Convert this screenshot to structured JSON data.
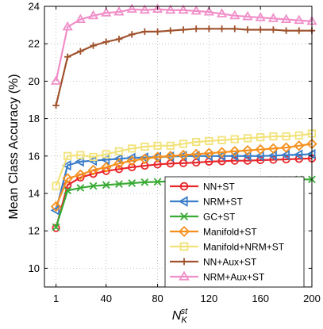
{
  "chart_data": {
    "type": "line",
    "title": "",
    "xlabel_base": "N",
    "xlabel_sub": "K",
    "xlabel_sup": "st",
    "ylabel": "Mean Class Accuracy (%)",
    "xlim": [
      -8,
      200
    ],
    "ylim": [
      9,
      24
    ],
    "x_ticks": [
      1,
      40,
      80,
      120,
      160,
      200
    ],
    "x_tick_labels": [
      "1",
      "40",
      "80",
      "120",
      "160",
      "200"
    ],
    "y_ticks": [
      10,
      12,
      14,
      16,
      18,
      20,
      22,
      24
    ],
    "y_tick_labels": [
      "10",
      "12",
      "14",
      "16",
      "18",
      "20",
      "22",
      "24"
    ],
    "grid": true,
    "legend_position": "bottom-right",
    "x": [
      1,
      10,
      20,
      30,
      40,
      50,
      60,
      70,
      80,
      90,
      100,
      110,
      120,
      130,
      140,
      150,
      160,
      170,
      180,
      190,
      200
    ],
    "series": [
      {
        "name": "NN+ST",
        "color": "#e8262a",
        "marker": "circle",
        "values": [
          12.15,
          14.45,
          14.85,
          15.05,
          15.2,
          15.3,
          15.4,
          15.48,
          15.55,
          15.6,
          15.62,
          15.65,
          15.7,
          15.72,
          15.75,
          15.75,
          15.78,
          15.8,
          15.82,
          15.85,
          15.87
        ]
      },
      {
        "name": "NRM+ST",
        "color": "#3a7dc9",
        "marker": "triangle-left",
        "values": [
          13.1,
          15.5,
          15.7,
          15.75,
          15.8,
          15.85,
          15.9,
          15.92,
          15.95,
          15.97,
          16.0,
          16.0,
          16.0,
          16.0,
          16.0,
          16.0,
          16.0,
          16.02,
          16.05,
          16.07,
          16.1
        ]
      },
      {
        "name": "GC+ST",
        "color": "#3aaa35",
        "marker": "x",
        "values": [
          12.2,
          14.15,
          14.3,
          14.4,
          14.45,
          14.5,
          14.55,
          14.6,
          14.62,
          14.65,
          14.65,
          14.67,
          14.68,
          14.68,
          14.7,
          14.7,
          14.7,
          14.72,
          14.72,
          14.75,
          14.75
        ]
      },
      {
        "name": "Manifold+ST",
        "color": "#f5901e",
        "marker": "diamond",
        "values": [
          13.3,
          14.8,
          15.0,
          15.25,
          15.4,
          15.6,
          15.75,
          15.85,
          15.95,
          16.0,
          16.05,
          16.1,
          16.15,
          16.2,
          16.25,
          16.3,
          16.35,
          16.4,
          16.45,
          16.55,
          16.65
        ]
      },
      {
        "name": "Manifold+NRM+ST",
        "color": "#f2e27a",
        "marker": "square",
        "values": [
          14.4,
          16.0,
          16.05,
          15.95,
          16.1,
          16.25,
          16.4,
          16.5,
          16.55,
          16.55,
          16.65,
          16.75,
          16.8,
          16.85,
          16.9,
          16.95,
          17.0,
          17.05,
          17.05,
          17.1,
          17.2
        ]
      },
      {
        "name": "NN+Aux+ST",
        "color": "#a0522d",
        "marker": "plus",
        "values": [
          18.7,
          21.3,
          21.6,
          21.9,
          22.1,
          22.25,
          22.5,
          22.65,
          22.65,
          22.7,
          22.75,
          22.8,
          22.8,
          22.8,
          22.8,
          22.75,
          22.75,
          22.75,
          22.7,
          22.7,
          22.7
        ]
      },
      {
        "name": "NRM+Aux+ST",
        "color": "#f08ec8",
        "marker": "triangle-up",
        "values": [
          20.0,
          22.9,
          23.3,
          23.5,
          23.65,
          23.7,
          23.85,
          23.8,
          23.85,
          23.8,
          23.8,
          23.75,
          23.7,
          23.6,
          23.5,
          23.45,
          23.4,
          23.35,
          23.3,
          23.25,
          23.2
        ]
      }
    ]
  }
}
